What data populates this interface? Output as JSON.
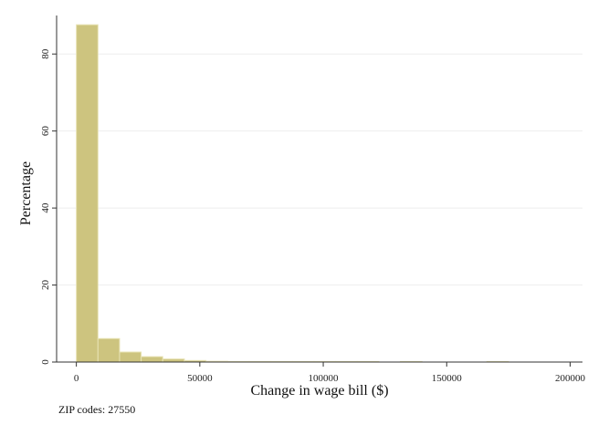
{
  "chart_data": {
    "type": "bar",
    "subtype": "histogram",
    "xlabel": "Change in wage bill ($)",
    "ylabel": "Percentage",
    "note": "ZIP codes: 27550",
    "xlim": [
      -8000,
      205000
    ],
    "ylim": [
      0,
      90
    ],
    "x_ticks": [
      0,
      50000,
      100000,
      150000,
      200000
    ],
    "x_tick_labels": [
      "0",
      "50000",
      "100000",
      "150000",
      "200000"
    ],
    "y_ticks": [
      0,
      20,
      40,
      60,
      80
    ],
    "y_tick_labels": [
      "0",
      "20",
      "40",
      "60",
      "80"
    ],
    "grid": "horizontal",
    "bar_color": "#cdc47f",
    "bar_edge_color": "#e8e3b5",
    "bin_width": 8750,
    "bins": [
      {
        "start": 0,
        "value": 87.6
      },
      {
        "start": 8750,
        "value": 6.1
      },
      {
        "start": 17500,
        "value": 2.6
      },
      {
        "start": 26250,
        "value": 1.4
      },
      {
        "start": 35000,
        "value": 0.8
      },
      {
        "start": 43750,
        "value": 0.4
      },
      {
        "start": 52500,
        "value": 0.2
      },
      {
        "start": 61250,
        "value": 0.1
      },
      {
        "start": 70000,
        "value": 0.1
      },
      {
        "start": 78750,
        "value": 0.1
      },
      {
        "start": 87500,
        "value": 0.05
      },
      {
        "start": 96250,
        "value": 0.05
      },
      {
        "start": 105000,
        "value": 0.05
      },
      {
        "start": 113750,
        "value": 0.05
      },
      {
        "start": 131250,
        "value": 0.1
      },
      {
        "start": 166250,
        "value": 0.1
      }
    ]
  }
}
